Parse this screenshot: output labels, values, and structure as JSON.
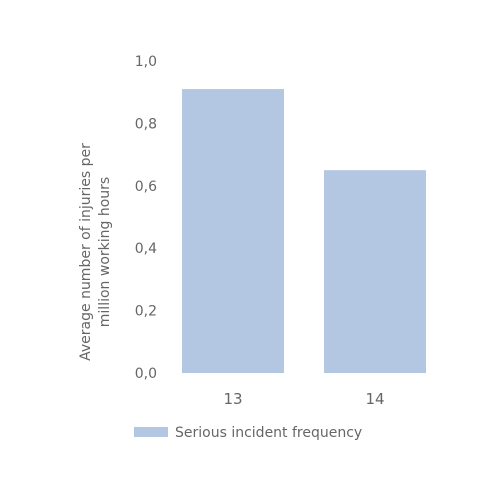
{
  "chart_data": {
    "type": "bar",
    "categories": [
      "13",
      "14"
    ],
    "series": [
      {
        "name": "Serious incident frequency",
        "values": [
          0.91,
          0.65
        ],
        "color": "#b3c6e2"
      }
    ],
    "ylim": [
      0,
      1.0
    ],
    "yticks": [
      "0,0",
      "0,2",
      "0,4",
      "0,6",
      "0,8",
      "1,0"
    ],
    "ytick_values": [
      0,
      0.2,
      0.4,
      0.6,
      0.8,
      1.0
    ],
    "ylabel_lines": [
      "Average number of injuries per",
      "million working hours"
    ],
    "xlabel": "",
    "title": "",
    "grid": false,
    "legend": "bottom"
  }
}
